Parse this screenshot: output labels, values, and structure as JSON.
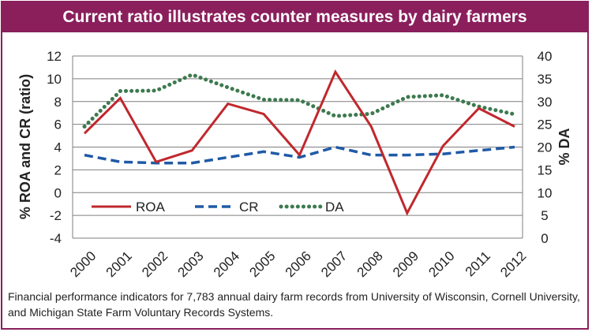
{
  "title": "Current ratio illustrates counter measures by dairy farmers",
  "caption": "Financial performance indicators for 7,783 annual dairy farm records from University of Wisconsin, Cornell University, and Michigan State Farm Voluntary Records Systems.",
  "colors": {
    "frame": "#8a1f5c",
    "roa": "#c0282d",
    "cr": "#1f5aa6",
    "da": "#3d7a4f",
    "grid": "#7f7f7f"
  },
  "chart_data": {
    "type": "line",
    "categories": [
      "2000",
      "2001",
      "2002",
      "2003",
      "2004",
      "2005",
      "2006",
      "2007",
      "2008",
      "2009",
      "2010",
      "2011",
      "2012"
    ],
    "ylabel": "% ROA and CR (ratio)",
    "y2label": "% DA",
    "ylim": [
      -4,
      12
    ],
    "y2lim": [
      0,
      40
    ],
    "yticks": [
      "-4",
      "-2",
      "0",
      "2",
      "4",
      "6",
      "8",
      "10",
      "12"
    ],
    "y2ticks": [
      "0",
      "5",
      "10",
      "15",
      "20",
      "25",
      "30",
      "35",
      "40"
    ],
    "grid": true,
    "legend_position": "lower-left inside",
    "series": [
      {
        "name": "ROA",
        "axis": "left",
        "style": "solid",
        "values": [
          5.2,
          8.3,
          2.7,
          3.7,
          7.8,
          6.9,
          3.3,
          10.6,
          5.8,
          -1.8,
          4.1,
          7.4,
          5.8
        ]
      },
      {
        "name": "CR",
        "axis": "left",
        "style": "dashed",
        "values": [
          3.3,
          2.7,
          2.6,
          2.6,
          3.1,
          3.6,
          3.1,
          4.0,
          3.3,
          3.3,
          3.4,
          3.7,
          4.0
        ]
      },
      {
        "name": "DA",
        "axis": "right",
        "style": "dotted",
        "values": [
          24.5,
          32.3,
          32.4,
          35.9,
          33.1,
          30.4,
          30.3,
          26.8,
          27.3,
          31.0,
          31.4,
          28.9,
          27.2
        ]
      }
    ]
  }
}
